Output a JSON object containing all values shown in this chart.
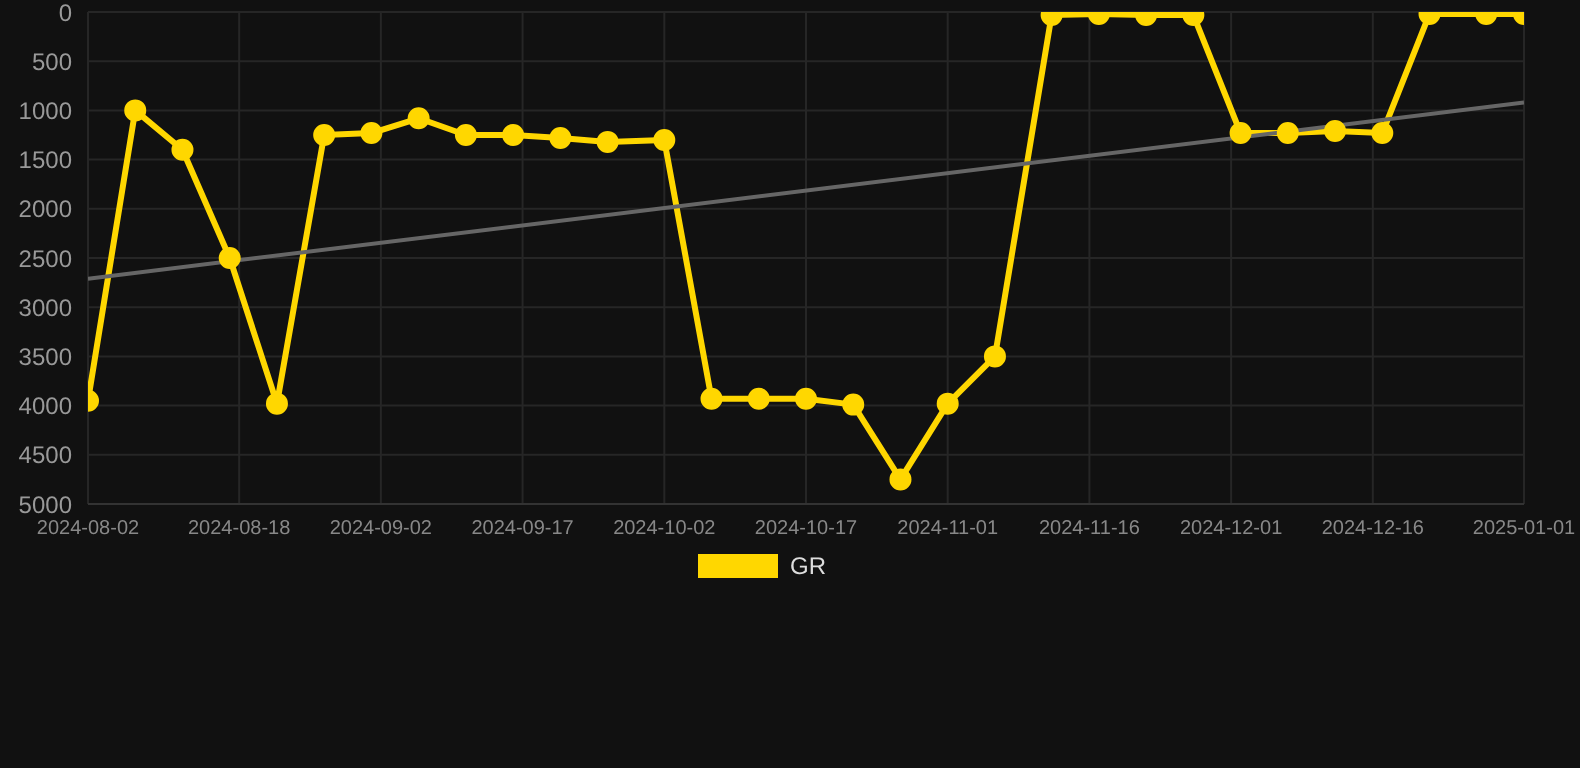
{
  "chart_data": {
    "type": "line",
    "x": [
      "2024-08-02",
      "2024-08-07",
      "2024-08-12",
      "2024-08-17",
      "2024-08-22",
      "2024-08-27",
      "2024-09-01",
      "2024-09-06",
      "2024-09-11",
      "2024-09-16",
      "2024-09-21",
      "2024-09-26",
      "2024-10-02",
      "2024-10-07",
      "2024-10-12",
      "2024-10-17",
      "2024-10-22",
      "2024-10-27",
      "2024-11-01",
      "2024-11-06",
      "2024-11-12",
      "2024-11-17",
      "2024-11-22",
      "2024-11-27",
      "2024-12-02",
      "2024-12-07",
      "2024-12-12",
      "2024-12-17",
      "2024-12-22",
      "2024-12-28",
      "2025-01-01"
    ],
    "series": [
      {
        "name": "GR",
        "color": "#ffd700",
        "values": [
          3950,
          1000,
          1400,
          2500,
          3980,
          1250,
          1230,
          1080,
          1250,
          1250,
          1280,
          1320,
          1300,
          3930,
          3930,
          3930,
          3990,
          4750,
          3980,
          3500,
          30,
          20,
          30,
          30,
          1230,
          1230,
          1210,
          1230,
          20,
          20,
          20
        ]
      },
      {
        "type": "line",
        "color": "#666666",
        "x": [
          "2024-08-02",
          "2025-01-01"
        ],
        "values": [
          2710,
          920
        ],
        "marker": "none"
      }
    ],
    "xlim": [
      "2024-08-02",
      "2025-01-01"
    ],
    "xticks": [
      "2024-08-02",
      "2024-08-18",
      "2024-09-02",
      "2024-09-17",
      "2024-10-02",
      "2024-10-17",
      "2024-11-01",
      "2024-11-16",
      "2024-12-01",
      "2024-12-16",
      "2025-01-01"
    ],
    "ylim": [
      5000,
      0
    ],
    "yticks": [
      0,
      500,
      1000,
      1500,
      2000,
      2500,
      3000,
      3500,
      4000,
      4500,
      5000
    ],
    "grid": true,
    "legend": "bottom",
    "marker": "circle",
    "line_style": "solid"
  }
}
